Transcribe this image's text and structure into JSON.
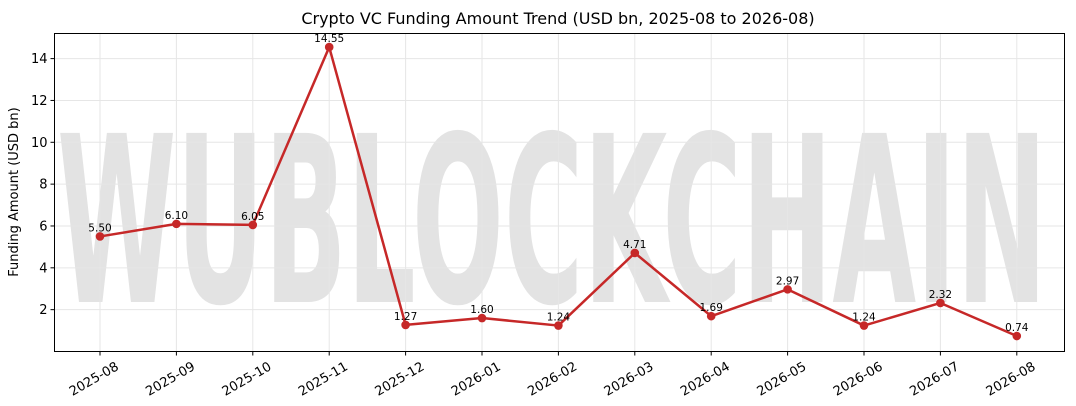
{
  "chart_data": {
    "type": "line",
    "title": "Crypto VC Funding Amount Trend (USD bn, 2025-08 to 2026-08)",
    "xlabel": "",
    "ylabel": "Funding Amount (USD bn)",
    "categories": [
      "2025-08",
      "2025-09",
      "2025-10",
      "2025-11",
      "2025-12",
      "2026-01",
      "2026-02",
      "2026-03",
      "2026-04",
      "2026-05",
      "2026-06",
      "2026-07",
      "2026-08"
    ],
    "series": [
      {
        "values": [
          5.5,
          6.1,
          6.05,
          14.55,
          1.27,
          1.6,
          1.24,
          4.71,
          1.69,
          2.97,
          1.24,
          2.32,
          0.74
        ],
        "labels": [
          "5.50",
          "6.10",
          "6.05",
          "14.55",
          "1.27",
          "1.60",
          "1.24",
          "4.71",
          "1.69",
          "2.97",
          "1.24",
          "2.32",
          "0.74"
        ],
        "color": "#c62828"
      }
    ],
    "ylim": [
      0.0,
      15.2
    ],
    "yticks": [
      2,
      4,
      6,
      8,
      10,
      12,
      14
    ],
    "ytick_labels": [
      "2",
      "4",
      "6",
      "8",
      "10",
      "12",
      "14"
    ],
    "grid": true,
    "watermark": "WUBLOCKCHAIN"
  }
}
